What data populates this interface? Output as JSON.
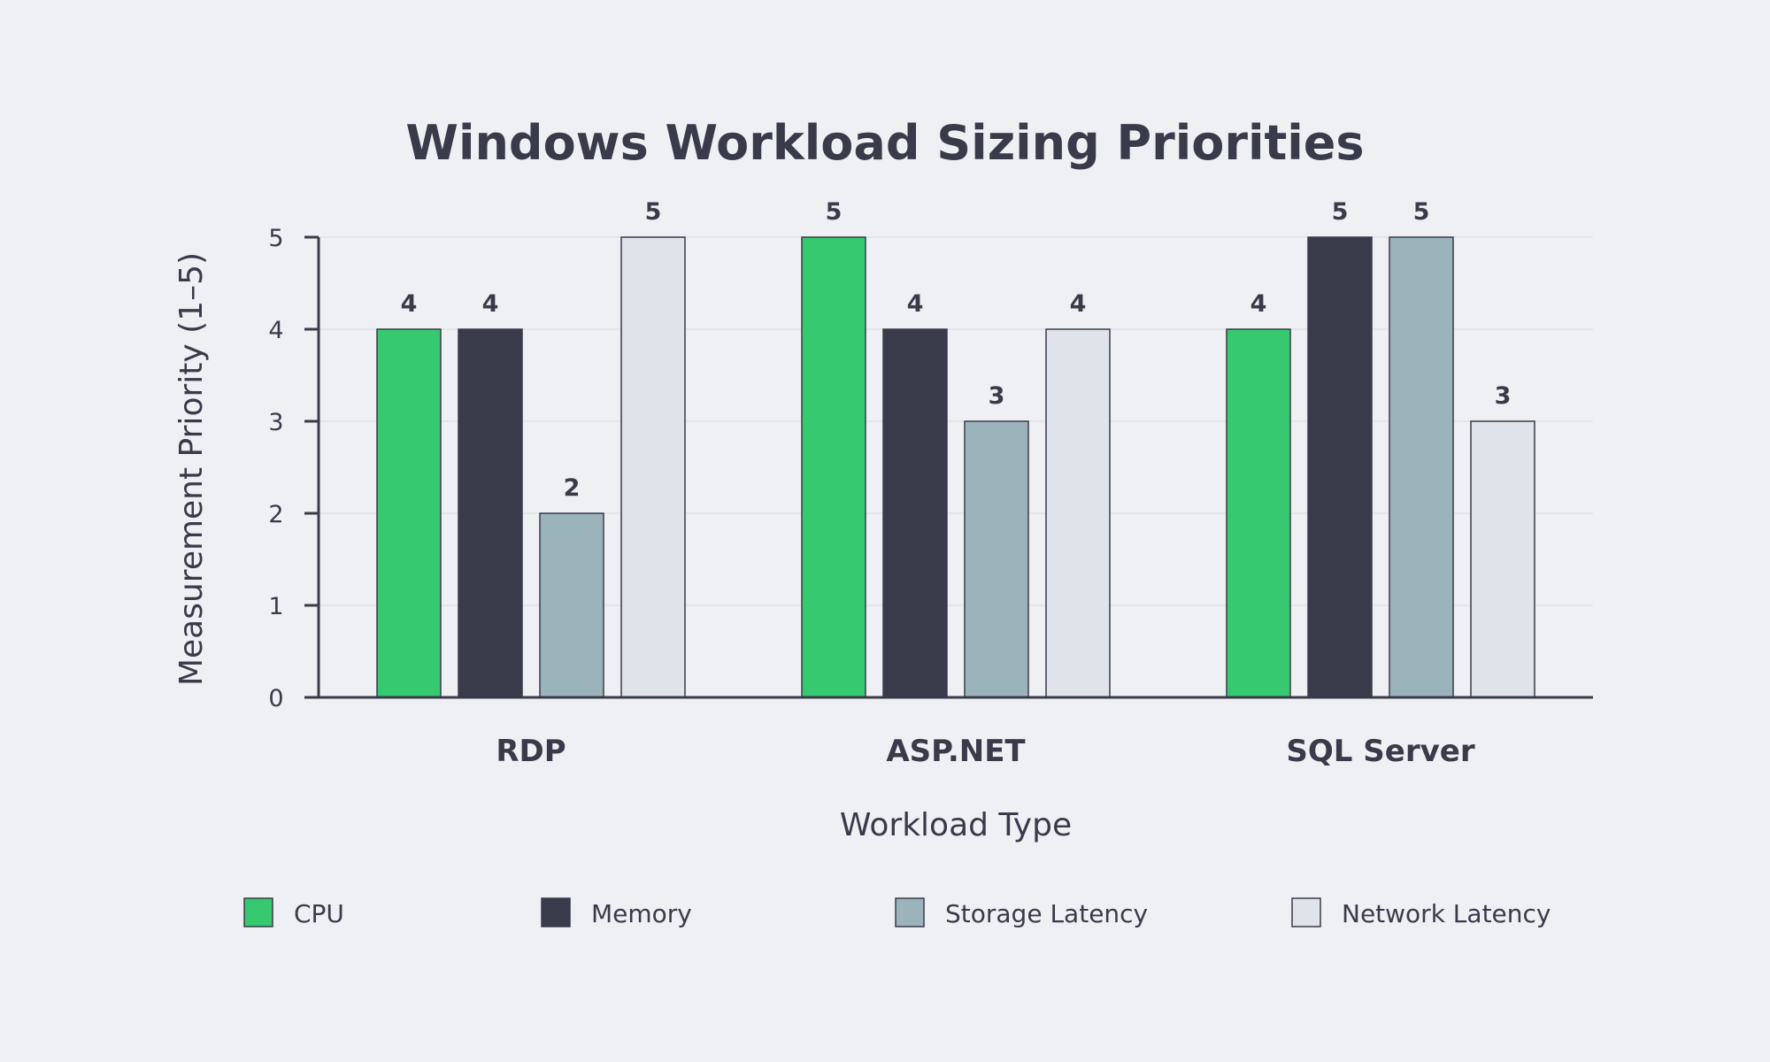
{
  "chart_data": {
    "type": "bar",
    "title": "Windows Workload Sizing Priorities",
    "xlabel": "Workload Type",
    "ylabel": "Measurement Priority (1–5)",
    "categories": [
      "RDP",
      "ASP.NET",
      "SQL Server"
    ],
    "series": [
      {
        "name": "CPU",
        "values": [
          4,
          5,
          4
        ],
        "color": "#36c96f"
      },
      {
        "name": "Memory",
        "values": [
          4,
          4,
          5
        ],
        "color": "#393a4a"
      },
      {
        "name": "Storage Latency",
        "values": [
          2,
          3,
          5
        ],
        "color": "#9bb4bb"
      },
      {
        "name": "Network Latency",
        "values": [
          5,
          4,
          3
        ],
        "color": "#dfe3ea"
      }
    ],
    "ylim": [
      0,
      5
    ],
    "yticks": [
      0,
      1,
      2,
      3,
      4,
      5
    ],
    "grid": true,
    "legend_position": "bottom",
    "data_labels": true
  },
  "colors": {
    "background": "#eff0f3",
    "text": "#3a3b4a",
    "grid": "#dfe1e6"
  }
}
